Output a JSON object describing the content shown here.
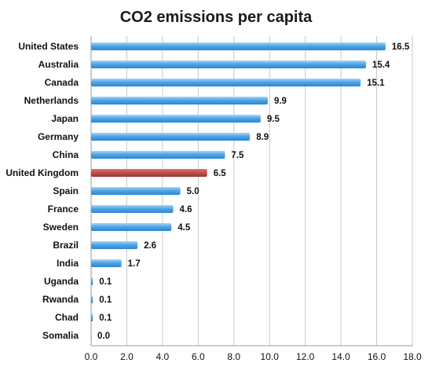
{
  "chart_data": {
    "type": "bar",
    "orientation": "horizontal",
    "title": "CO2 emissions per capita",
    "categories": [
      "United States",
      "Australia",
      "Canada",
      "Netherlands",
      "Japan",
      "Germany",
      "China",
      "United Kingdom",
      "Spain",
      "France",
      "Sweden",
      "Brazil",
      "India",
      "Uganda",
      "Rwanda",
      "Chad",
      "Somalia"
    ],
    "values": [
      16.5,
      15.4,
      15.1,
      9.9,
      9.5,
      8.9,
      7.5,
      6.5,
      5.0,
      4.6,
      4.5,
      2.6,
      1.7,
      0.1,
      0.1,
      0.1,
      0.0
    ],
    "value_labels": [
      "16.5",
      "15.4",
      "15.1",
      "9.9",
      "9.5",
      "8.9",
      "7.5",
      "6.5",
      "5.0",
      "4.6",
      "4.5",
      "2.6",
      "1.7",
      "0.1",
      "0.1",
      "0.1",
      "0.0"
    ],
    "xlim": [
      0,
      18
    ],
    "xticks": [
      "0.0",
      "2.0",
      "4.0",
      "6.0",
      "8.0",
      "10.0",
      "12.0",
      "14.0",
      "16.0",
      "18.0"
    ],
    "xtick_values": [
      0,
      2,
      4,
      6,
      8,
      10,
      12,
      14,
      16,
      18
    ],
    "highlight_category": "United Kingdom",
    "colors": {
      "default": "#4ea6e8",
      "highlight": "#c0504d",
      "grid": "#c8c8c8"
    },
    "grid": true,
    "legend": "none"
  }
}
